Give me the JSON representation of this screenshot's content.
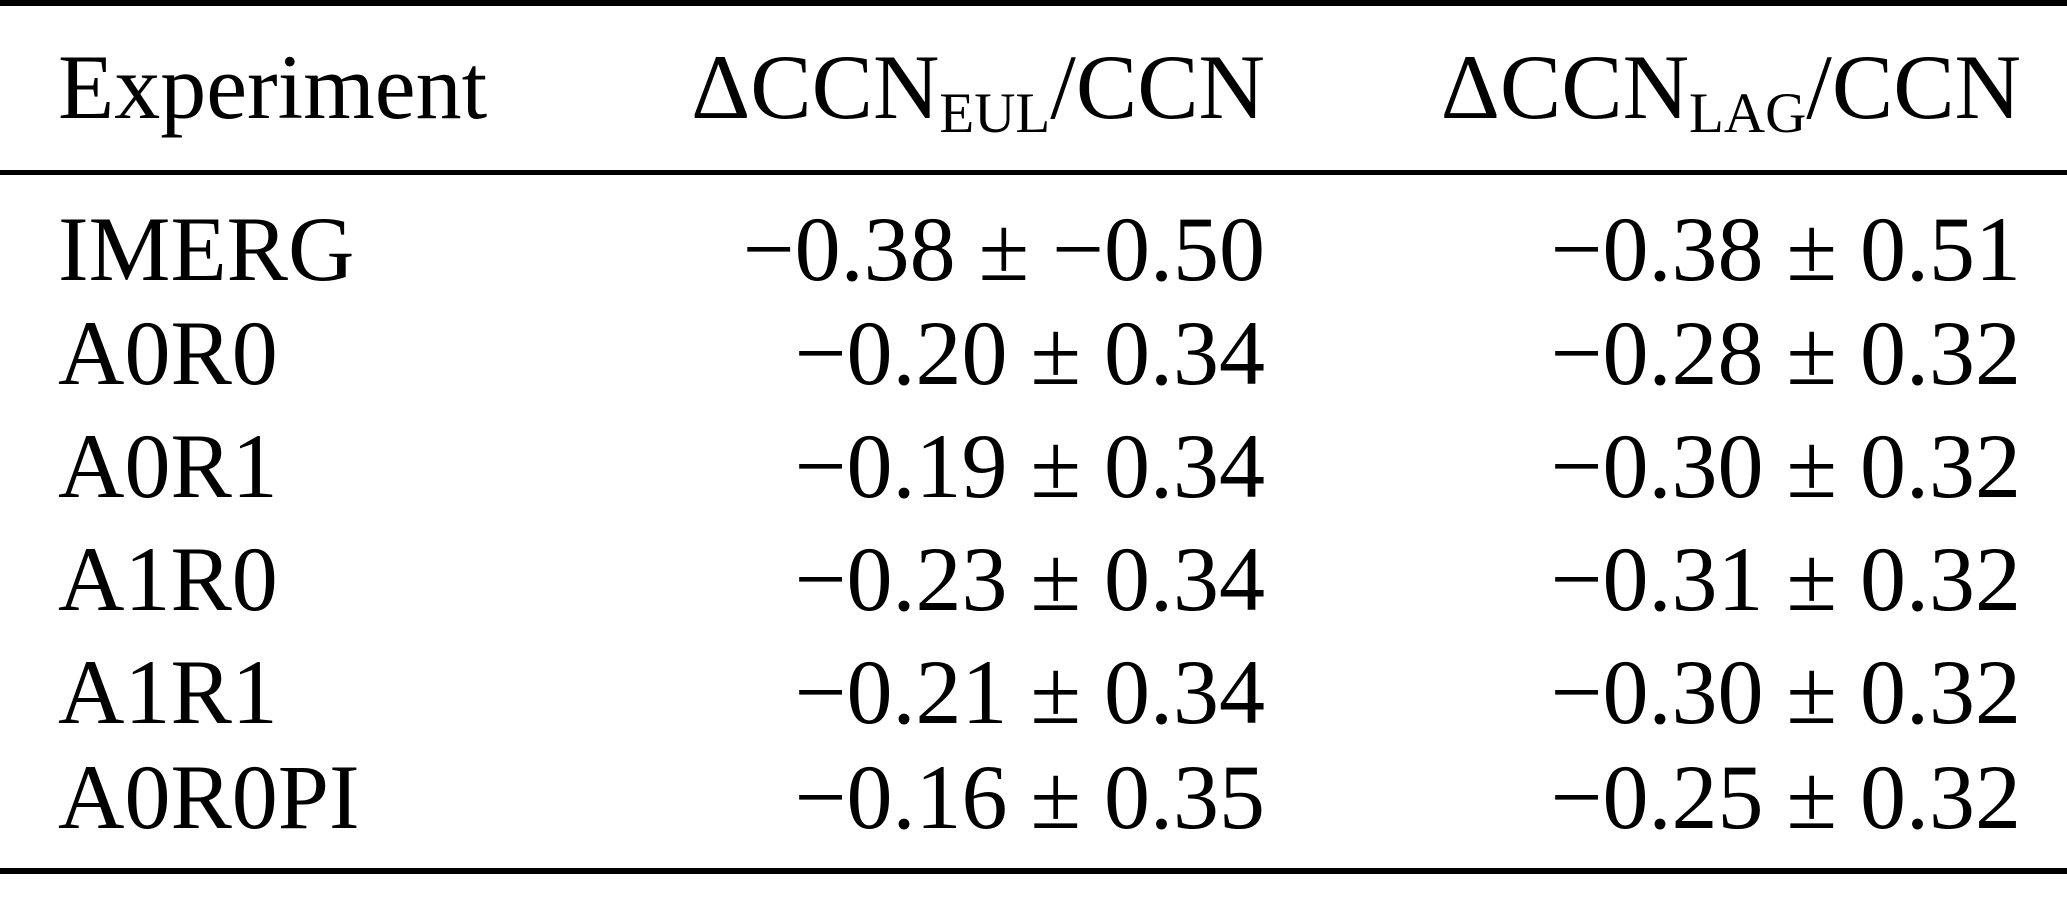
{
  "table": {
    "header": {
      "experiment": "Experiment",
      "eul": {
        "main": "ΔCCN",
        "sub": "EUL",
        "suffix": "/CCN"
      },
      "lag": {
        "main": "ΔCCN",
        "sub": "LAG",
        "suffix": "/CCN"
      }
    },
    "rows": [
      {
        "experiment": "IMERG",
        "eul": "−0.38 ± −0.50",
        "lag": "−0.38 ± 0.51"
      },
      {
        "experiment": "A0R0",
        "eul": "−0.20 ± 0.34",
        "lag": "−0.28 ± 0.32"
      },
      {
        "experiment": "A0R1",
        "eul": "−0.19 ± 0.34",
        "lag": "−0.30 ± 0.32"
      },
      {
        "experiment": "A1R0",
        "eul": "−0.23 ± 0.34",
        "lag": "−0.31 ± 0.32"
      },
      {
        "experiment": "A1R1",
        "eul": "−0.21 ± 0.34",
        "lag": "−0.30 ± 0.32"
      },
      {
        "experiment": "A0R0PI",
        "eul": "−0.16 ± 0.35",
        "lag": "−0.25 ± 0.32"
      }
    ],
    "colors": {
      "text": "#000000",
      "background": "#ffffff",
      "rule": "#000000"
    }
  }
}
